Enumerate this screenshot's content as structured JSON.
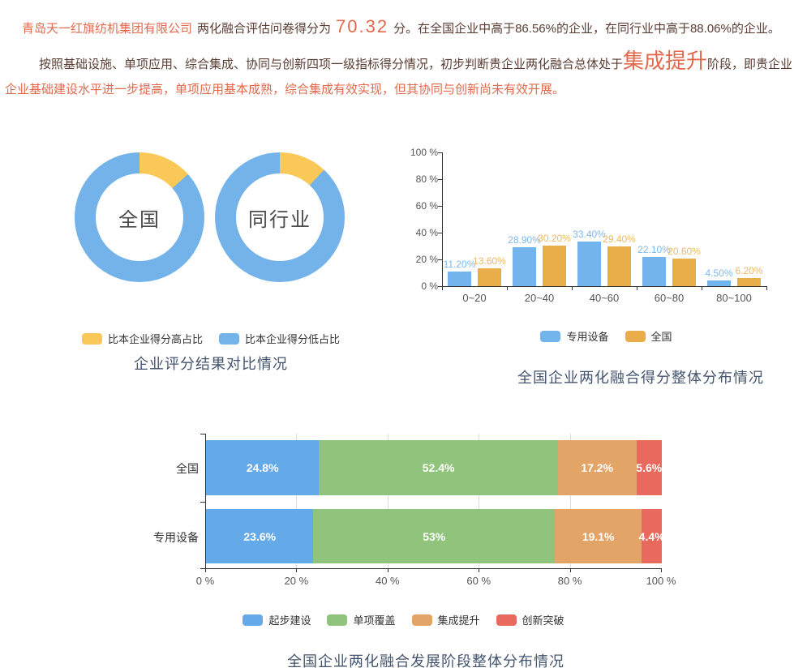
{
  "colors": {
    "highlight": "#e2694c",
    "dark_text": "#5a3c32",
    "title": "#44546e"
  },
  "header": {
    "company": "青岛天一红旗纺机集团有限公司",
    "score_prefix": "两化融合评估问卷得分为",
    "score": "70.32",
    "score_suffix": "分。在全国企业中高于86.56%的企业，在同行业中高于88.06%的企业。",
    "para_part1": "按照基础设施、单项应用、综合集成、协同与创新四项一级指标得分情况，初步判断贵企业两化融合总体处于",
    "stage": "集成提升",
    "para_part2": "阶段，即贵企业",
    "para_part3": "企业基础建设水平进一步提高，单项应用基本成熟，综合集成有效实现，但其协同与创新尚未有效开展。"
  },
  "chart_data": [
    {
      "type": "pie",
      "variant": "double-donut",
      "title": "企业评分结果对比情况",
      "legend": [
        {
          "label": "比本企业得分高占比",
          "color": "#f9c857"
        },
        {
          "label": "比本企业得分低占比",
          "color": "#74b3ea"
        }
      ],
      "donuts": [
        {
          "label": "全国",
          "slices": [
            {
              "name": "比本企业得分高占比",
              "value": 13.44,
              "color": "#f9c857"
            },
            {
              "name": "比本企业得分低占比",
              "value": 86.56,
              "color": "#74b3ea"
            }
          ]
        },
        {
          "label": "同行业",
          "slices": [
            {
              "name": "比本企业得分高占比",
              "value": 11.94,
              "color": "#f9c857"
            },
            {
              "name": "比本企业得分低占比",
              "value": 88.06,
              "color": "#74b3ea"
            }
          ]
        }
      ]
    },
    {
      "type": "bar",
      "title": "全国企业两化融合得分整体分布情况",
      "categories": [
        "0~20",
        "20~40",
        "40~60",
        "60~80",
        "80~100"
      ],
      "yticks": [
        "0 %",
        "20 %",
        "40 %",
        "60 %",
        "80 %",
        "100 %"
      ],
      "ylim": [
        0,
        100
      ],
      "series": [
        {
          "name": "专用设备",
          "color": "#74b4ec",
          "label_color": "#7db9ed",
          "values": [
            11.2,
            28.9,
            33.4,
            22.1,
            4.5
          ],
          "labels": [
            "11.20%",
            "28.90%",
            "33.40%",
            "22.10%",
            "4.50%"
          ]
        },
        {
          "name": "全国",
          "color": "#e9ad49",
          "label_color": "#ecb863",
          "values": [
            13.6,
            30.2,
            29.4,
            20.6,
            6.2
          ],
          "labels": [
            "13.60%",
            "30.20%",
            "29.40%",
            "20.60%",
            "6.20%"
          ]
        }
      ]
    },
    {
      "type": "bar",
      "variant": "horizontal-stacked",
      "title": "全国企业两化融合发展阶段整体分布情况",
      "categories": [
        "全国",
        "专用设备"
      ],
      "xticks": [
        "0 %",
        "20 %",
        "40 %",
        "60 %",
        "80 %",
        "100 %"
      ],
      "xlim": [
        0,
        100
      ],
      "series": [
        {
          "name": "起步建设",
          "color": "#64a9e8",
          "values": [
            24.8,
            23.6
          ]
        },
        {
          "name": "单项覆盖",
          "color": "#90c37c",
          "values": [
            52.4,
            53
          ]
        },
        {
          "name": "集成提升",
          "color": "#e2a567",
          "values": [
            17.2,
            19.1
          ]
        },
        {
          "name": "创新突破",
          "color": "#e8695d",
          "values": [
            5.6,
            4.4
          ]
        }
      ],
      "labels": [
        [
          "24.8%",
          "52.4%",
          "17.2%",
          "5.6%"
        ],
        [
          "23.6%",
          "53%",
          "19.1%",
          "4.4%"
        ]
      ]
    }
  ]
}
